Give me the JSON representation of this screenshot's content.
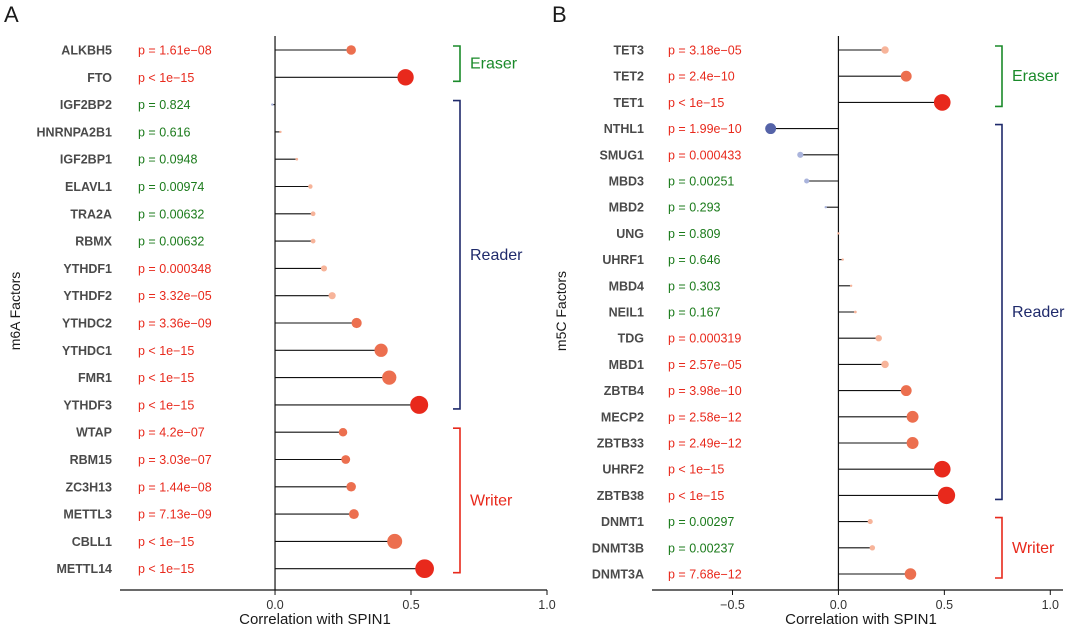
{
  "colors": {
    "red": "#e8291c",
    "green": "#1a7a1a",
    "navy": "#1f2a6b",
    "low": "#f7b49a",
    "mid": "#ec6f4f",
    "high": "#e8291c",
    "negStrong": "#5563a8",
    "negLight": "#aab4dc"
  },
  "chart_data": [
    {
      "panel": "A",
      "type": "lollipop",
      "xlabel": "Correlation with SPIN1",
      "ylabel": "m6A Factors",
      "xlim": [
        -0.57,
        1.0
      ],
      "xticks": [
        "0.0",
        "0.5",
        "1.0"
      ],
      "xtick_values": [
        0.0,
        0.5,
        1.0
      ],
      "rows": [
        {
          "gene": "ALKBH5",
          "r": 0.28,
          "p": "p = 1.61e−08",
          "sig": true
        },
        {
          "gene": "FTO",
          "r": 0.48,
          "p": "p < 1e−15",
          "sig": true
        },
        {
          "gene": "IGF2BP2",
          "r": -0.01,
          "p": "p = 0.824",
          "sig": false
        },
        {
          "gene": "HNRNPA2B1",
          "r": 0.02,
          "p": "p = 0.616",
          "sig": false
        },
        {
          "gene": "IGF2BP1",
          "r": 0.08,
          "p": "p = 0.0948",
          "sig": false
        },
        {
          "gene": "ELAVL1",
          "r": 0.13,
          "p": "p = 0.00974",
          "sig": false
        },
        {
          "gene": "TRA2A",
          "r": 0.14,
          "p": "p = 0.00632",
          "sig": false
        },
        {
          "gene": "RBMX",
          "r": 0.14,
          "p": "p = 0.00632",
          "sig": false
        },
        {
          "gene": "YTHDF1",
          "r": 0.18,
          "p": "p = 0.000348",
          "sig": true
        },
        {
          "gene": "YTHDF2",
          "r": 0.21,
          "p": "p = 3.32e−05",
          "sig": true
        },
        {
          "gene": "YTHDC2",
          "r": 0.3,
          "p": "p = 3.36e−09",
          "sig": true
        },
        {
          "gene": "YTHDC1",
          "r": 0.39,
          "p": "p < 1e−15",
          "sig": true
        },
        {
          "gene": "FMR1",
          "r": 0.42,
          "p": "p < 1e−15",
          "sig": true
        },
        {
          "gene": "YTHDF3",
          "r": 0.53,
          "p": "p < 1e−15",
          "sig": true
        },
        {
          "gene": "WTAP",
          "r": 0.25,
          "p": "p = 4.2e−07",
          "sig": true
        },
        {
          "gene": "RBM15",
          "r": 0.26,
          "p": "p = 3.03e−07",
          "sig": true
        },
        {
          "gene": "ZC3H13",
          "r": 0.28,
          "p": "p = 1.44e−08",
          "sig": true
        },
        {
          "gene": "METTL3",
          "r": 0.29,
          "p": "p = 7.13e−09",
          "sig": true
        },
        {
          "gene": "CBLL1",
          "r": 0.44,
          "p": "p < 1e−15",
          "sig": true
        },
        {
          "gene": "METTL14",
          "r": 0.55,
          "p": "p < 1e−15",
          "sig": true
        }
      ],
      "groups": [
        {
          "label": "Eraser",
          "color": "#1a8a2a",
          "from": 0,
          "to": 1
        },
        {
          "label": "Reader",
          "color": "#1f2a6b",
          "from": 2,
          "to": 13
        },
        {
          "label": "Writer",
          "color": "#e8291c",
          "from": 14,
          "to": 19
        }
      ]
    },
    {
      "panel": "B",
      "type": "lollipop",
      "xlabel": "Correlation with SPIN1",
      "ylabel": "m5C Factors",
      "xlim": [
        -0.88,
        1.06
      ],
      "xticks": [
        "−0.5",
        "0.0",
        "0.5",
        "1.0"
      ],
      "xtick_values": [
        -0.5,
        0.0,
        0.5,
        1.0
      ],
      "rows": [
        {
          "gene": "TET3",
          "r": 0.22,
          "p": "p = 3.18e−05",
          "sig": true
        },
        {
          "gene": "TET2",
          "r": 0.32,
          "p": "p = 2.4e−10",
          "sig": true
        },
        {
          "gene": "TET1",
          "r": 0.49,
          "p": "p < 1e−15",
          "sig": true
        },
        {
          "gene": "NTHL1",
          "r": -0.32,
          "p": "p = 1.99e−10",
          "sig": true
        },
        {
          "gene": "SMUG1",
          "r": -0.18,
          "p": "p = 0.000433",
          "sig": true
        },
        {
          "gene": "MBD3",
          "r": -0.15,
          "p": "p = 0.00251",
          "sig": false
        },
        {
          "gene": "MBD2",
          "r": -0.06,
          "p": "p = 0.293",
          "sig": false
        },
        {
          "gene": "UNG",
          "r": 0.0,
          "p": "p = 0.809",
          "sig": false
        },
        {
          "gene": "UHRF1",
          "r": 0.02,
          "p": "p = 0.646",
          "sig": false
        },
        {
          "gene": "MBD4",
          "r": 0.06,
          "p": "p = 0.303",
          "sig": false
        },
        {
          "gene": "NEIL1",
          "r": 0.08,
          "p": "p = 0.167",
          "sig": false
        },
        {
          "gene": "TDG",
          "r": 0.19,
          "p": "p = 0.000319",
          "sig": true
        },
        {
          "gene": "MBD1",
          "r": 0.22,
          "p": "p = 2.57e−05",
          "sig": true
        },
        {
          "gene": "ZBTB4",
          "r": 0.32,
          "p": "p = 3.98e−10",
          "sig": true
        },
        {
          "gene": "MECP2",
          "r": 0.35,
          "p": "p = 2.58e−12",
          "sig": true
        },
        {
          "gene": "ZBTB33",
          "r": 0.35,
          "p": "p = 2.49e−12",
          "sig": true
        },
        {
          "gene": "UHRF2",
          "r": 0.49,
          "p": "p < 1e−15",
          "sig": true
        },
        {
          "gene": "ZBTB38",
          "r": 0.51,
          "p": "p < 1e−15",
          "sig": true
        },
        {
          "gene": "DNMT1",
          "r": 0.15,
          "p": "p = 0.00297",
          "sig": false
        },
        {
          "gene": "DNMT3B",
          "r": 0.16,
          "p": "p = 0.00237",
          "sig": false
        },
        {
          "gene": "DNMT3A",
          "r": 0.34,
          "p": "p = 7.68e−12",
          "sig": true
        }
      ],
      "groups": [
        {
          "label": "Eraser",
          "color": "#1a8a2a",
          "from": 0,
          "to": 2
        },
        {
          "label": "Reader",
          "color": "#1f2a6b",
          "from": 3,
          "to": 17
        },
        {
          "label": "Writer",
          "color": "#e8291c",
          "from": 18,
          "to": 20
        }
      ]
    }
  ]
}
